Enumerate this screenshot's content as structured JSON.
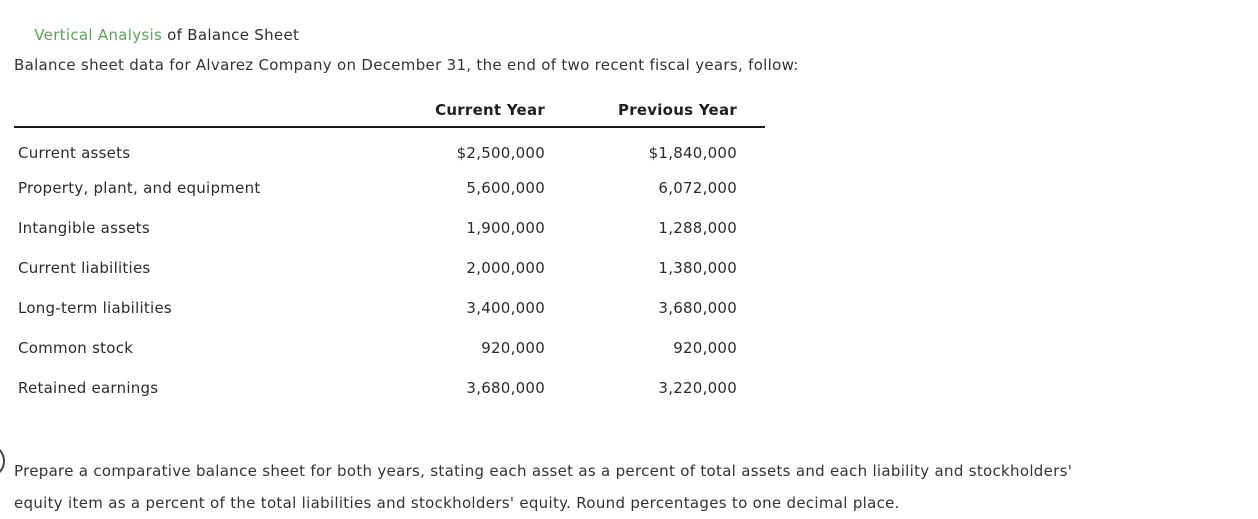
{
  "title": {
    "highlight": "Vertical Analysis",
    "rest": " of Balance Sheet"
  },
  "intro": "Balance sheet data for Alvarez Company on December 31, the end of two recent fiscal years, follow:",
  "table": {
    "columns": [
      "Current Year",
      "Previous Year"
    ],
    "rows": [
      {
        "label": "Current assets",
        "current": "$2,500,000",
        "previous": "$1,840,000"
      },
      {
        "label": "Property, plant, and equipment",
        "current": "5,600,000",
        "previous": "6,072,000"
      },
      {
        "label": "Intangible assets",
        "current": "1,900,000",
        "previous": "1,288,000"
      },
      {
        "label": "Current liabilities",
        "current": "2,000,000",
        "previous": "1,380,000"
      },
      {
        "label": "Long-term liabilities",
        "current": "3,400,000",
        "previous": "3,680,000"
      },
      {
        "label": "Common stock",
        "current": "920,000",
        "previous": "920,000"
      },
      {
        "label": "Retained earnings",
        "current": "3,680,000",
        "previous": "3,220,000"
      }
    ]
  },
  "instruction": {
    "lines": [
      "Prepare a comparative balance sheet for both years, stating each asset as a percent of total assets and each liability and stockholders'",
      "equity item as a percent of the total liabilities and stockholders' equity. Round percentages to one decimal place."
    ]
  },
  "colors": {
    "accent_green": "#5fa05f",
    "text": "#333333",
    "table_rule": "#1a1a1a"
  }
}
